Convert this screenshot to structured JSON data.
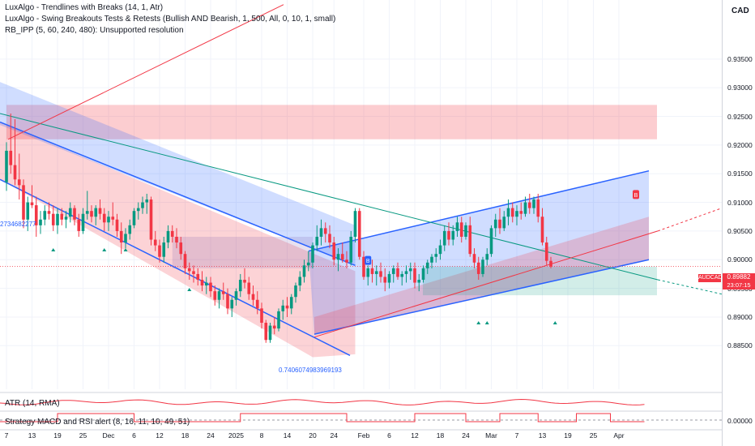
{
  "header": {
    "currency": "CAD",
    "indicators": [
      "LuxAlgo - Trendlines with Breaks (14, 1, Atr)",
      "LuxAlgo - Swing Breakouts Tests & Retests (Bullish AND Bearish, 1, 500, All, 0, 10, 1, small)",
      "RB_IPP (5, 60, 240, 480): Unsupported resolution"
    ]
  },
  "symbol": {
    "name": "AUDCAD",
    "price": "0.89882",
    "countdown": "23:07:15",
    "color": "#f23645"
  },
  "annotations": {
    "left_value": "2734682277",
    "low_value": "0.7406074983969193",
    "marker_buy": "B",
    "marker_sell": "B"
  },
  "subpanes": {
    "atr_label": "ATR (14, RMA)",
    "strategy_label": "Strategy MACD and RSI alert (8, 16, 11, 10, 49, 51)",
    "strategy_axis_value": "0.00000"
  },
  "chart_data": {
    "type": "candlestick",
    "ylim": [
      0.8808,
      0.9395
    ],
    "y_ticks": [
      "0.93500",
      "0.93000",
      "0.92500",
      "0.92000",
      "0.91500",
      "0.91000",
      "0.90500",
      "0.90000",
      "0.89500",
      "0.89000",
      "0.88500"
    ],
    "y_tick_values": [
      0.935,
      0.93,
      0.925,
      0.92,
      0.915,
      0.91,
      0.905,
      0.9,
      0.895,
      0.89,
      0.885
    ],
    "x_ticks": [
      "7",
      "13",
      "19",
      "25",
      "Dec",
      "6",
      "12",
      "18",
      "24",
      "2025",
      "8",
      "14",
      "20",
      "24",
      "Feb",
      "6",
      "12",
      "18",
      "24",
      "Mar",
      "7",
      "13",
      "19",
      "25",
      "Apr"
    ],
    "x_tick_bars": [
      0,
      6,
      12,
      18,
      24,
      30,
      36,
      42,
      48,
      54,
      60,
      66,
      72,
      77,
      84,
      90,
      96,
      102,
      108,
      114,
      120,
      126,
      132,
      138,
      144
    ],
    "colors": {
      "up": "#089981",
      "down": "#f23645",
      "channel": "#2962ff"
    },
    "candles": [
      [
        0.9135,
        0.9205,
        0.912,
        0.919
      ],
      [
        0.919,
        0.9255,
        0.915,
        0.9165
      ],
      [
        0.9165,
        0.9245,
        0.913,
        0.914
      ],
      [
        0.914,
        0.9185,
        0.9105,
        0.913
      ],
      [
        0.913,
        0.914,
        0.9055,
        0.907
      ],
      [
        0.907,
        0.911,
        0.905,
        0.91
      ],
      [
        0.91,
        0.913,
        0.909,
        0.9095
      ],
      [
        0.9095,
        0.911,
        0.904,
        0.906
      ],
      [
        0.906,
        0.9085,
        0.9045,
        0.907
      ],
      [
        0.907,
        0.9095,
        0.906,
        0.9085
      ],
      [
        0.9085,
        0.91,
        0.907,
        0.908
      ],
      [
        0.908,
        0.9095,
        0.905,
        0.906
      ],
      [
        0.906,
        0.909,
        0.9045,
        0.908
      ],
      [
        0.908,
        0.909,
        0.906,
        0.907
      ],
      [
        0.907,
        0.9085,
        0.9055,
        0.9075
      ],
      [
        0.9075,
        0.91,
        0.9065,
        0.909
      ],
      [
        0.909,
        0.9095,
        0.906,
        0.907
      ],
      [
        0.907,
        0.908,
        0.904,
        0.905
      ],
      [
        0.905,
        0.909,
        0.9045,
        0.908
      ],
      [
        0.908,
        0.912,
        0.907,
        0.9085
      ],
      [
        0.9085,
        0.9095,
        0.9065,
        0.9075
      ],
      [
        0.9075,
        0.9095,
        0.906,
        0.909
      ],
      [
        0.909,
        0.9105,
        0.907,
        0.908
      ],
      [
        0.908,
        0.909,
        0.905,
        0.9065
      ],
      [
        0.9065,
        0.9085,
        0.905,
        0.9075
      ],
      [
        0.9075,
        0.91,
        0.906,
        0.907
      ],
      [
        0.907,
        0.908,
        0.904,
        0.905
      ],
      [
        0.905,
        0.9065,
        0.901,
        0.903
      ],
      [
        0.903,
        0.9055,
        0.902,
        0.9045
      ],
      [
        0.9045,
        0.907,
        0.9035,
        0.906
      ],
      [
        0.906,
        0.909,
        0.9055,
        0.9085
      ],
      [
        0.9085,
        0.91,
        0.907,
        0.909
      ],
      [
        0.909,
        0.911,
        0.908,
        0.91
      ],
      [
        0.91,
        0.9115,
        0.908,
        0.9105
      ],
      [
        0.9105,
        0.911,
        0.9025,
        0.9035
      ],
      [
        0.9035,
        0.905,
        0.9015,
        0.9025
      ],
      [
        0.9025,
        0.9035,
        0.8995,
        0.9005
      ],
      [
        0.9005,
        0.904,
        0.8995,
        0.903
      ],
      [
        0.903,
        0.906,
        0.902,
        0.905
      ],
      [
        0.905,
        0.906,
        0.903,
        0.904
      ],
      [
        0.904,
        0.9055,
        0.902,
        0.903
      ],
      [
        0.903,
        0.904,
        0.9,
        0.901
      ],
      [
        0.901,
        0.9015,
        0.8975,
        0.8985
      ],
      [
        0.8985,
        0.8995,
        0.8965,
        0.898
      ],
      [
        0.898,
        0.899,
        0.896,
        0.8975
      ],
      [
        0.8975,
        0.8985,
        0.8955,
        0.8965
      ],
      [
        0.8965,
        0.898,
        0.8945,
        0.8955
      ],
      [
        0.8955,
        0.897,
        0.894,
        0.896
      ],
      [
        0.896,
        0.897,
        0.8935,
        0.8945
      ],
      [
        0.8945,
        0.8955,
        0.892,
        0.893
      ],
      [
        0.893,
        0.895,
        0.8915,
        0.8945
      ],
      [
        0.8945,
        0.896,
        0.893,
        0.894
      ],
      [
        0.894,
        0.895,
        0.8905,
        0.8915
      ],
      [
        0.8915,
        0.8935,
        0.89,
        0.893
      ],
      [
        0.893,
        0.895,
        0.892,
        0.8945
      ],
      [
        0.8945,
        0.8975,
        0.8935,
        0.8965
      ],
      [
        0.8965,
        0.8985,
        0.895,
        0.896
      ],
      [
        0.896,
        0.897,
        0.893,
        0.894
      ],
      [
        0.894,
        0.8955,
        0.892,
        0.893
      ],
      [
        0.893,
        0.8945,
        0.8905,
        0.8915
      ],
      [
        0.8915,
        0.8925,
        0.888,
        0.889
      ],
      [
        0.889,
        0.8895,
        0.8855,
        0.886
      ],
      [
        0.886,
        0.889,
        0.8855,
        0.8885
      ],
      [
        0.8885,
        0.89,
        0.887,
        0.888
      ],
      [
        0.888,
        0.8915,
        0.8875,
        0.891
      ],
      [
        0.891,
        0.893,
        0.8895,
        0.892
      ],
      [
        0.892,
        0.8935,
        0.89,
        0.8915
      ],
      [
        0.8915,
        0.894,
        0.8905,
        0.8935
      ],
      [
        0.8935,
        0.896,
        0.8925,
        0.8955
      ],
      [
        0.8955,
        0.898,
        0.8945,
        0.897
      ],
      [
        0.897,
        0.9,
        0.896,
        0.899
      ],
      [
        0.899,
        0.9015,
        0.898,
        0.8995
      ],
      [
        0.8995,
        0.903,
        0.8985,
        0.9025
      ],
      [
        0.9025,
        0.906,
        0.9015,
        0.904
      ],
      [
        0.904,
        0.907,
        0.9025,
        0.9055
      ],
      [
        0.9055,
        0.9065,
        0.903,
        0.9045
      ],
      [
        0.9045,
        0.906,
        0.902,
        0.903
      ],
      [
        0.903,
        0.904,
        0.899,
        0.9
      ],
      [
        0.9,
        0.902,
        0.898,
        0.901
      ],
      [
        0.901,
        0.903,
        0.8995,
        0.9
      ],
      [
        0.9,
        0.9015,
        0.8985,
        0.8995
      ],
      [
        0.8995,
        0.905,
        0.899,
        0.904
      ],
      [
        0.904,
        0.909,
        0.903,
        0.9085
      ],
      [
        0.9085,
        0.909,
        0.9,
        0.9005
      ],
      [
        0.9005,
        0.9015,
        0.8965,
        0.897
      ],
      [
        0.897,
        0.899,
        0.8955,
        0.8985
      ],
      [
        0.8985,
        0.9,
        0.896,
        0.8975
      ],
      [
        0.8975,
        0.899,
        0.8955,
        0.898
      ],
      [
        0.898,
        0.8995,
        0.896,
        0.897
      ],
      [
        0.897,
        0.8985,
        0.8945,
        0.896
      ],
      [
        0.896,
        0.898,
        0.895,
        0.8975
      ],
      [
        0.8975,
        0.899,
        0.896,
        0.8985
      ],
      [
        0.8985,
        0.8995,
        0.8965,
        0.897
      ],
      [
        0.897,
        0.898,
        0.8955,
        0.8975
      ],
      [
        0.8975,
        0.899,
        0.896,
        0.898
      ],
      [
        0.898,
        0.8995,
        0.8965,
        0.8985
      ],
      [
        0.8985,
        0.8995,
        0.895,
        0.896
      ],
      [
        0.896,
        0.8975,
        0.8945,
        0.8965
      ],
      [
        0.8965,
        0.899,
        0.896,
        0.8985
      ],
      [
        0.8985,
        0.9,
        0.8975,
        0.8995
      ],
      [
        0.8995,
        0.901,
        0.8985,
        0.9005
      ],
      [
        0.9005,
        0.902,
        0.8995,
        0.901
      ],
      [
        0.901,
        0.9035,
        0.9,
        0.9025
      ],
      [
        0.9025,
        0.906,
        0.9015,
        0.905
      ],
      [
        0.905,
        0.9065,
        0.9025,
        0.9035
      ],
      [
        0.9035,
        0.906,
        0.9025,
        0.905
      ],
      [
        0.905,
        0.9075,
        0.904,
        0.9065
      ],
      [
        0.9065,
        0.9075,
        0.903,
        0.904
      ],
      [
        0.904,
        0.9065,
        0.9035,
        0.906
      ],
      [
        0.906,
        0.9075,
        0.9005,
        0.901
      ],
      [
        0.901,
        0.902,
        0.8985,
        0.8995
      ],
      [
        0.8995,
        0.9005,
        0.8965,
        0.8975
      ],
      [
        0.8975,
        0.9005,
        0.897,
        0.9
      ],
      [
        0.9,
        0.902,
        0.899,
        0.901
      ],
      [
        0.901,
        0.906,
        0.9005,
        0.9055
      ],
      [
        0.9055,
        0.908,
        0.904,
        0.907
      ],
      [
        0.907,
        0.909,
        0.9045,
        0.9055
      ],
      [
        0.9055,
        0.9085,
        0.905,
        0.9075
      ],
      [
        0.9075,
        0.9105,
        0.906,
        0.909
      ],
      [
        0.909,
        0.91,
        0.9065,
        0.9075
      ],
      [
        0.9075,
        0.9095,
        0.906,
        0.9085
      ],
      [
        0.9085,
        0.91,
        0.907,
        0.908
      ],
      [
        0.908,
        0.911,
        0.9075,
        0.91
      ],
      [
        0.91,
        0.9115,
        0.908,
        0.909
      ],
      [
        0.909,
        0.911,
        0.908,
        0.9105
      ],
      [
        0.9105,
        0.9115,
        0.9065,
        0.9075
      ],
      [
        0.9075,
        0.909,
        0.9025,
        0.903
      ],
      [
        0.903,
        0.904,
        0.899,
        0.8998
      ],
      [
        0.8998,
        0.9005,
        0.8985,
        0.8988
      ]
    ]
  }
}
